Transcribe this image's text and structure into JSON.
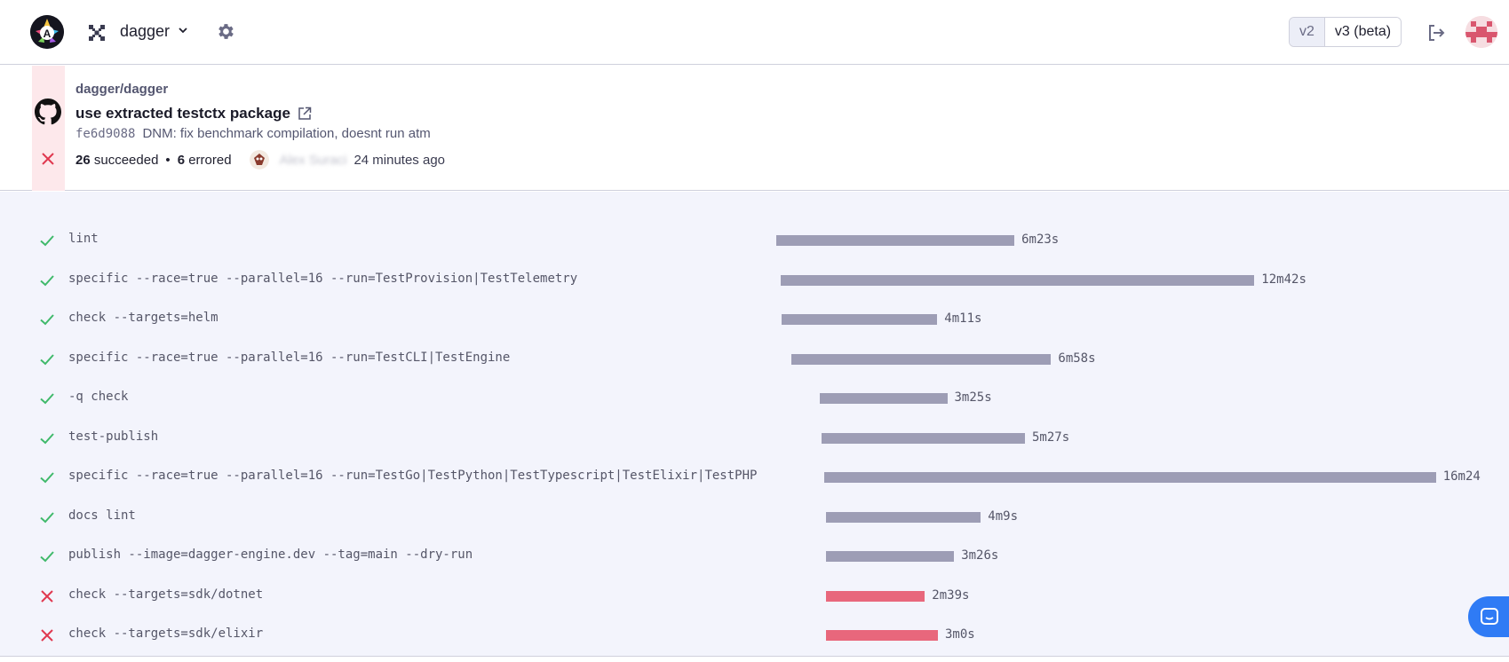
{
  "header": {
    "org_name": "dagger",
    "versions": [
      "v2",
      "v3 (beta)"
    ]
  },
  "commit": {
    "repo": "dagger/dagger",
    "title": "use extracted testctx package",
    "sha": "fe6d9088",
    "message": "DNM: fix benchmark compilation, doesnt run atm",
    "succeeded_count": "26",
    "succeeded_label": "succeeded",
    "separator": "•",
    "errored_count": "6",
    "errored_label": "errored",
    "author": "Alex Suraci",
    "time_ago": "24 minutes ago"
  },
  "checks": [
    {
      "status": "success",
      "label": "lint",
      "duration": "6m23s",
      "start_s": 0,
      "duration_s": 383
    },
    {
      "status": "success",
      "label": "specific --race=true --parallel=16 --run=TestProvision|TestTelemetry",
      "duration": "12m42s",
      "start_s": 7,
      "duration_s": 762
    },
    {
      "status": "success",
      "label": "check --targets=helm",
      "duration": "4m11s",
      "start_s": 8,
      "duration_s": 251
    },
    {
      "status": "success",
      "label": "specific --race=true --parallel=16 --run=TestCLI|TestEngine",
      "duration": "6m58s",
      "start_s": 24,
      "duration_s": 418
    },
    {
      "status": "success",
      "label": "-q check",
      "duration": "3m25s",
      "start_s": 70,
      "duration_s": 205
    },
    {
      "status": "success",
      "label": "test-publish",
      "duration": "5m27s",
      "start_s": 73,
      "duration_s": 327
    },
    {
      "status": "success",
      "label": "specific --race=true --parallel=16 --run=TestGo|TestPython|TestTypescript|TestElixir|TestPHP",
      "duration": "16m24",
      "start_s": 77,
      "duration_s": 984
    },
    {
      "status": "success",
      "label": "docs lint",
      "duration": "4m9s",
      "start_s": 80,
      "duration_s": 249
    },
    {
      "status": "success",
      "label": "publish --image=dagger-engine.dev --tag=main --dry-run",
      "duration": "3m26s",
      "start_s": 80,
      "duration_s": 206
    },
    {
      "status": "error",
      "label": "check --targets=sdk/dotnet",
      "duration": "2m39s",
      "start_s": 80,
      "duration_s": 159
    },
    {
      "status": "error",
      "label": "check --targets=sdk/elixir",
      "duration": "3m0s",
      "start_s": 80,
      "duration_s": 180
    }
  ],
  "colors": {
    "success": "#3fb96a",
    "error": "#e0384f",
    "bar": "#9d9db5",
    "bar_error": "#e8677c",
    "chat": "#2f7bf5"
  }
}
